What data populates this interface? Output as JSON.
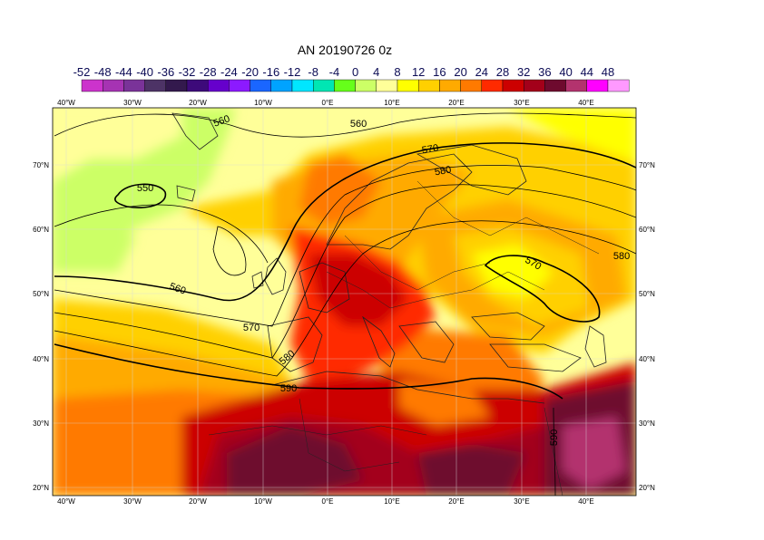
{
  "title": "AN  20190726 0z",
  "legend": {
    "labels": [
      "-52",
      "-48",
      "-44",
      "-40",
      "-36",
      "-32",
      "-28",
      "-24",
      "-20",
      "-16",
      "-12",
      "-8",
      "-4",
      "0",
      "4",
      "8",
      "12",
      "16",
      "20",
      "24",
      "28",
      "32",
      "36",
      "40",
      "44",
      "48"
    ],
    "colors": [
      "#cc33cc",
      "#a633b3",
      "#7a3399",
      "#4d3366",
      "#33194d",
      "#3d0a7a",
      "#6600cc",
      "#8c1aff",
      "#1a66ff",
      "#00a3ff",
      "#00e6ff",
      "#00e6b3",
      "#66ff1a",
      "#ccff66",
      "#ffff99",
      "#ffff00",
      "#ffd000",
      "#ffaa00",
      "#ff7a00",
      "#ff2a00",
      "#cc0000",
      "#a3001a",
      "#6e0a2e",
      "#b3336e",
      "#ff00ff",
      "#ff99ff"
    ]
  },
  "map": {
    "lon_labels": [
      "40°W",
      "30°W",
      "20°W",
      "10°W",
      "0°E",
      "10°E",
      "20°E",
      "30°E",
      "40°E"
    ],
    "lat_labels": [
      "70°N",
      "60°N",
      "50°N",
      "40°N",
      "30°N",
      "20°N"
    ],
    "contour_labels": [
      "560",
      "560",
      "550",
      "560",
      "570",
      "580",
      "570",
      "570",
      "580",
      "580",
      "590",
      "590"
    ]
  }
}
